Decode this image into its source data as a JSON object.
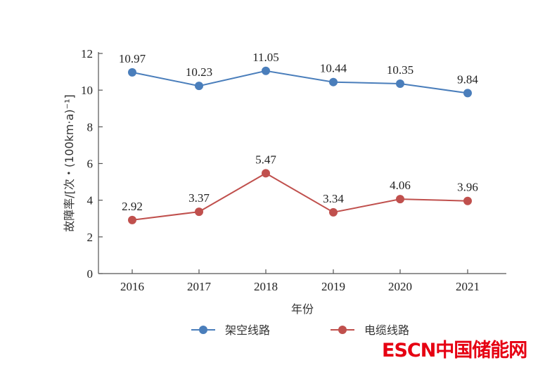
{
  "chart_data": {
    "type": "line",
    "categories": [
      "2016",
      "2017",
      "2018",
      "2019",
      "2020",
      "2021"
    ],
    "series": [
      {
        "name": "架空线路",
        "color": "#4a7ebb",
        "values": [
          10.97,
          10.23,
          11.05,
          10.44,
          10.35,
          9.84
        ],
        "labels": [
          "10.97",
          "10.23",
          "11.05",
          "10.44",
          "10.35",
          "9.84"
        ]
      },
      {
        "name": "电缆线路",
        "color": "#c0504d",
        "values": [
          2.92,
          3.37,
          5.47,
          3.34,
          4.06,
          3.96
        ],
        "labels": [
          "2.92",
          "3.37",
          "5.47",
          "3.34",
          "4.06",
          "3.96"
        ]
      }
    ],
    "xlabel": "年份",
    "ylabel": "故障率/[次・(100km·a)⁻¹]",
    "ylim": [
      0,
      12
    ],
    "yticks": [
      "0",
      "2",
      "4",
      "6",
      "8",
      "10",
      "12"
    ],
    "grid": false,
    "legend_position": "bottom"
  },
  "watermark": {
    "text": "ESCN中国储能网",
    "color": "#e60012"
  }
}
